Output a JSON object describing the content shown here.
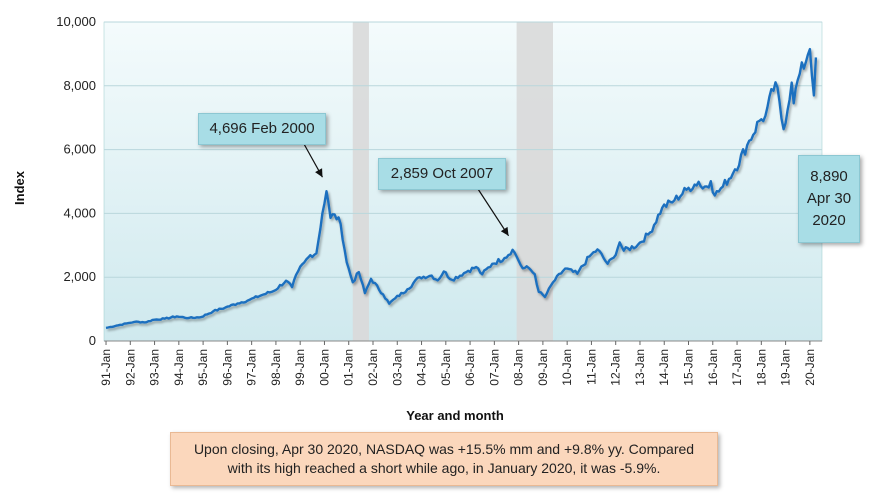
{
  "chart_data": {
    "type": "line",
    "title": "",
    "xlabel": "Year and month",
    "ylabel": "Index",
    "ylim": [
      0,
      10000
    ],
    "yticks": [
      "0",
      "2,000",
      "4,000",
      "6,000",
      "8,000",
      "10,000"
    ],
    "xticks": [
      "91-Jan",
      "92-Jan",
      "93-Jan",
      "94-Jan",
      "95-Jan",
      "96-Jan",
      "97-Jan",
      "98-Jan",
      "99-Jan",
      "00-Jan",
      "01-Jan",
      "02-Jan",
      "03-Jan",
      "04-Jan",
      "05-Jan",
      "06-Jan",
      "07-Jan",
      "08-Jan",
      "09-Jan",
      "10-Jan",
      "11-Jan",
      "12-Jan",
      "13-Jan",
      "14-Jan",
      "15-Jan",
      "16-Jan",
      "17-Jan",
      "18-Jan",
      "19-Jan",
      "20-Jan"
    ],
    "recessions": [
      {
        "start": "2001-03",
        "end": "2001-11"
      },
      {
        "start": "2007-12",
        "end": "2009-06"
      }
    ],
    "series": [
      {
        "color": "#1f6fbf",
        "points": [
          [
            "1991-01",
            410
          ],
          [
            "1991-06",
            480
          ],
          [
            "1991-12",
            560
          ],
          [
            "1992-03",
            600
          ],
          [
            "1992-09",
            590
          ],
          [
            "1992-12",
            660
          ],
          [
            "1993-06",
            700
          ],
          [
            "1993-12",
            770
          ],
          [
            "1994-06",
            720
          ],
          [
            "1994-12",
            750
          ],
          [
            "1995-06",
            930
          ],
          [
            "1995-12",
            1050
          ],
          [
            "1996-06",
            1180
          ],
          [
            "1996-12",
            1290
          ],
          [
            "1997-06",
            1440
          ],
          [
            "1997-12",
            1570
          ],
          [
            "1998-06",
            1890
          ],
          [
            "1998-09",
            1690
          ],
          [
            "1998-12",
            2190
          ],
          [
            "1999-03",
            2460
          ],
          [
            "1999-06",
            2690
          ],
          [
            "1999-09",
            2750
          ],
          [
            "1999-12",
            4000
          ],
          [
            "2000-02",
            4696
          ],
          [
            "2000-04",
            3860
          ],
          [
            "2000-06",
            3970
          ],
          [
            "2000-09",
            3670
          ],
          [
            "2000-12",
            2470
          ],
          [
            "2001-03",
            1840
          ],
          [
            "2001-06",
            2160
          ],
          [
            "2001-09",
            1500
          ],
          [
            "2001-12",
            1950
          ],
          [
            "2002-06",
            1460
          ],
          [
            "2002-09",
            1170
          ],
          [
            "2002-12",
            1340
          ],
          [
            "2003-06",
            1620
          ],
          [
            "2003-12",
            2000
          ],
          [
            "2004-06",
            2050
          ],
          [
            "2004-09",
            1900
          ],
          [
            "2004-12",
            2180
          ],
          [
            "2005-04",
            1920
          ],
          [
            "2005-12",
            2200
          ],
          [
            "2006-04",
            2320
          ],
          [
            "2006-07",
            2090
          ],
          [
            "2006-12",
            2420
          ],
          [
            "2007-06",
            2600
          ],
          [
            "2007-10",
            2859
          ],
          [
            "2007-12",
            2650
          ],
          [
            "2008-03",
            2280
          ],
          [
            "2008-06",
            2290
          ],
          [
            "2008-09",
            2090
          ],
          [
            "2008-11",
            1540
          ],
          [
            "2009-02",
            1380
          ],
          [
            "2009-06",
            1840
          ],
          [
            "2009-12",
            2270
          ],
          [
            "2010-06",
            2110
          ],
          [
            "2010-12",
            2650
          ],
          [
            "2011-04",
            2870
          ],
          [
            "2011-09",
            2420
          ],
          [
            "2011-12",
            2610
          ],
          [
            "2012-03",
            3090
          ],
          [
            "2012-05",
            2830
          ],
          [
            "2012-12",
            3020
          ],
          [
            "2013-06",
            3400
          ],
          [
            "2013-12",
            4180
          ],
          [
            "2014-06",
            4410
          ],
          [
            "2014-12",
            4740
          ],
          [
            "2015-06",
            4990
          ],
          [
            "2015-08",
            4780
          ],
          [
            "2015-12",
            5010
          ],
          [
            "2016-02",
            4560
          ],
          [
            "2016-06",
            4840
          ],
          [
            "2016-12",
            5380
          ],
          [
            "2017-06",
            6140
          ],
          [
            "2017-12",
            6900
          ],
          [
            "2018-03",
            7060
          ],
          [
            "2018-08",
            8110
          ],
          [
            "2018-12",
            6640
          ],
          [
            "2019-04",
            8100
          ],
          [
            "2019-05",
            7450
          ],
          [
            "2019-07",
            8180
          ],
          [
            "2019-12",
            8970
          ],
          [
            "2020-01",
            9150
          ],
          [
            "2020-03",
            7700
          ],
          [
            "2020-04",
            8890
          ]
        ]
      }
    ],
    "annotations": [
      {
        "text": "4,696 Feb 2000",
        "x": "2000-02",
        "y": 4696
      },
      {
        "text": "2,859 Oct 2007",
        "x": "2007-10",
        "y": 2859
      },
      {
        "text": "8,890\nApr 30\n2020",
        "x": "2020-04",
        "y": 8890
      }
    ],
    "note": "Upon closing, Apr 30 2020, NASDAQ was +15.5% mm and +9.8% yy. Compared with its high reached a short while ago, in January 2020, it was -5.9%."
  }
}
